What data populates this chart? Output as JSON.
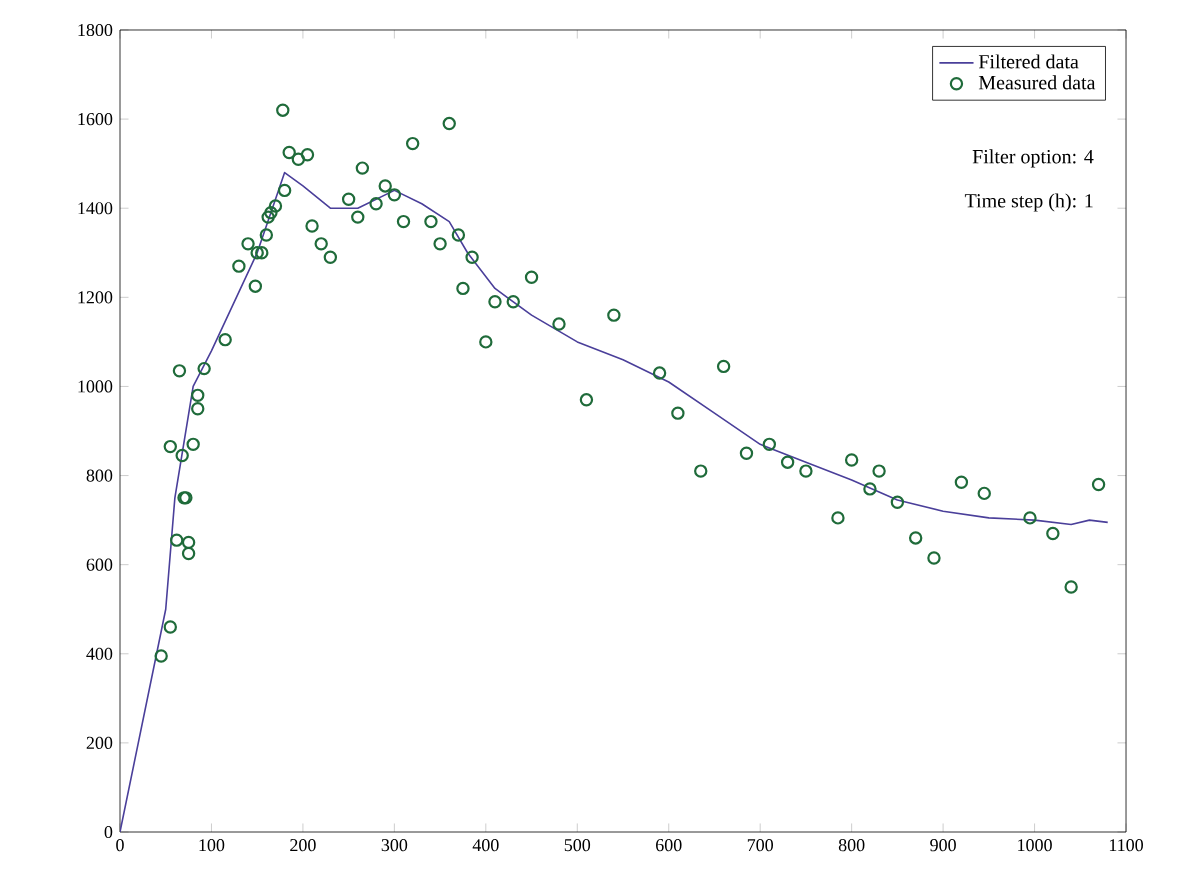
{
  "chart_data": {
    "type": "line",
    "xlim": [
      0,
      1100
    ],
    "ylim": [
      0,
      1800
    ],
    "xticks": [
      0,
      100,
      200,
      300,
      400,
      500,
      600,
      700,
      800,
      900,
      1000,
      1100
    ],
    "yticks": [
      0,
      200,
      400,
      600,
      800,
      1000,
      1200,
      1400,
      1600,
      1800
    ],
    "grid": false,
    "legend": "top right",
    "annotations": [
      "Filter option: 4",
      "Time step (h): 1"
    ],
    "series": [
      {
        "name": "Filtered data",
        "color": "#4a3f9a",
        "marker": "none",
        "line_style": "solid",
        "x": [
          0,
          20,
          50,
          60,
          80,
          100,
          150,
          180,
          200,
          230,
          260,
          300,
          330,
          360,
          380,
          410,
          450,
          500,
          550,
          600,
          650,
          700,
          750,
          800,
          850,
          900,
          950,
          1000,
          1040,
          1060,
          1080
        ],
        "values": [
          0,
          200,
          500,
          750,
          1000,
          1080,
          1300,
          1480,
          1450,
          1400,
          1400,
          1440,
          1410,
          1370,
          1300,
          1220,
          1160,
          1100,
          1060,
          1010,
          940,
          870,
          830,
          790,
          745,
          720,
          705,
          700,
          690,
          700,
          695
        ]
      },
      {
        "name": "Measured data",
        "type": "scatter",
        "color": "#1f6b3a",
        "marker": "circle",
        "x": [
          45,
          55,
          55,
          62,
          65,
          68,
          70,
          72,
          75,
          75,
          80,
          85,
          85,
          92,
          115,
          130,
          140,
          148,
          150,
          155,
          160,
          162,
          165,
          170,
          178,
          180,
          185,
          195,
          205,
          210,
          220,
          230,
          250,
          260,
          265,
          280,
          290,
          300,
          310,
          320,
          340,
          350,
          360,
          370,
          375,
          385,
          400,
          410,
          430,
          450,
          480,
          510,
          540,
          590,
          610,
          635,
          660,
          685,
          710,
          730,
          750,
          785,
          800,
          820,
          830,
          850,
          870,
          890,
          920,
          945,
          995,
          1020,
          1040,
          1070
        ],
        "values": [
          395,
          460,
          865,
          655,
          1035,
          845,
          750,
          750,
          650,
          625,
          870,
          950,
          980,
          1040,
          1105,
          1270,
          1320,
          1225,
          1300,
          1300,
          1340,
          1380,
          1390,
          1405,
          1620,
          1440,
          1525,
          1510,
          1520,
          1360,
          1320,
          1290,
          1420,
          1380,
          1490,
          1410,
          1450,
          1430,
          1370,
          1545,
          1370,
          1320,
          1590,
          1340,
          1220,
          1290,
          1100,
          1190,
          1190,
          1245,
          1140,
          970,
          1160,
          1030,
          940,
          810,
          1045,
          850,
          870,
          830,
          810,
          705,
          835,
          770,
          810,
          740,
          660,
          615,
          785,
          760,
          705,
          670,
          550,
          780
        ]
      }
    ]
  }
}
